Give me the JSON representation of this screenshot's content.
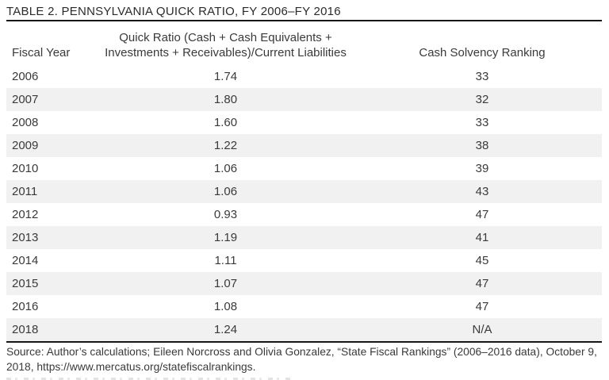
{
  "table": {
    "title": "TABLE 2. PENNSYLVANIA QUICK RATIO, FY 2006–FY 2016",
    "columns": [
      {
        "label": "Fiscal Year"
      },
      {
        "label": "Quick Ratio (Cash + Cash Equivalents + Investments + Receivables)/Current Liabilities",
        "label_line1": "Quick Ratio (Cash + Cash Equivalents +",
        "label_line2": "Investments + Receivables)/Current Liabilities"
      },
      {
        "label": "Cash Solvency Ranking"
      }
    ],
    "rows": [
      {
        "year": "2006",
        "quick_ratio": "1.74",
        "ranking": "33"
      },
      {
        "year": "2007",
        "quick_ratio": "1.80",
        "ranking": "32"
      },
      {
        "year": "2008",
        "quick_ratio": "1.60",
        "ranking": "33"
      },
      {
        "year": "2009",
        "quick_ratio": "1.22",
        "ranking": "38"
      },
      {
        "year": "2010",
        "quick_ratio": "1.06",
        "ranking": "39"
      },
      {
        "year": "2011",
        "quick_ratio": "1.06",
        "ranking": "43"
      },
      {
        "year": "2012",
        "quick_ratio": "0.93",
        "ranking": "47"
      },
      {
        "year": "2013",
        "quick_ratio": "1.19",
        "ranking": "41"
      },
      {
        "year": "2014",
        "quick_ratio": "1.11",
        "ranking": "45"
      },
      {
        "year": "2015",
        "quick_ratio": "1.07",
        "ranking": "47"
      },
      {
        "year": "2016",
        "quick_ratio": "1.08",
        "ranking": "47"
      },
      {
        "year": "2018",
        "quick_ratio": "1.24",
        "ranking": "N/A"
      }
    ]
  },
  "source": {
    "text": "Source: Author’s calculations; Eileen Norcross and Olivia Gonzalez, “State Fiscal Rankings” (2006–2016 data), October 9, 2018, https://www.mercatus.org/statefiscalrankings."
  },
  "colors": {
    "row_stripe": "#f1f1f1",
    "rule": "#161616",
    "text": "#3a3a3a",
    "title_text": "#2b2b2b"
  },
  "chart_data": {
    "type": "table",
    "title": "TABLE 2. PENNSYLVANIA QUICK RATIO, FY 2006–FY 2016",
    "columns": [
      "Fiscal Year",
      "Quick Ratio (Cash + Cash Equivalents + Investments + Receivables)/Current Liabilities",
      "Cash Solvency Ranking"
    ],
    "rows": [
      [
        "2006",
        1.74,
        33
      ],
      [
        "2007",
        1.8,
        32
      ],
      [
        "2008",
        1.6,
        33
      ],
      [
        "2009",
        1.22,
        38
      ],
      [
        "2010",
        1.06,
        39
      ],
      [
        "2011",
        1.06,
        43
      ],
      [
        "2012",
        0.93,
        47
      ],
      [
        "2013",
        1.19,
        41
      ],
      [
        "2014",
        1.11,
        45
      ],
      [
        "2015",
        1.07,
        47
      ],
      [
        "2016",
        1.08,
        47
      ],
      [
        "2018",
        1.24,
        "N/A"
      ]
    ]
  }
}
